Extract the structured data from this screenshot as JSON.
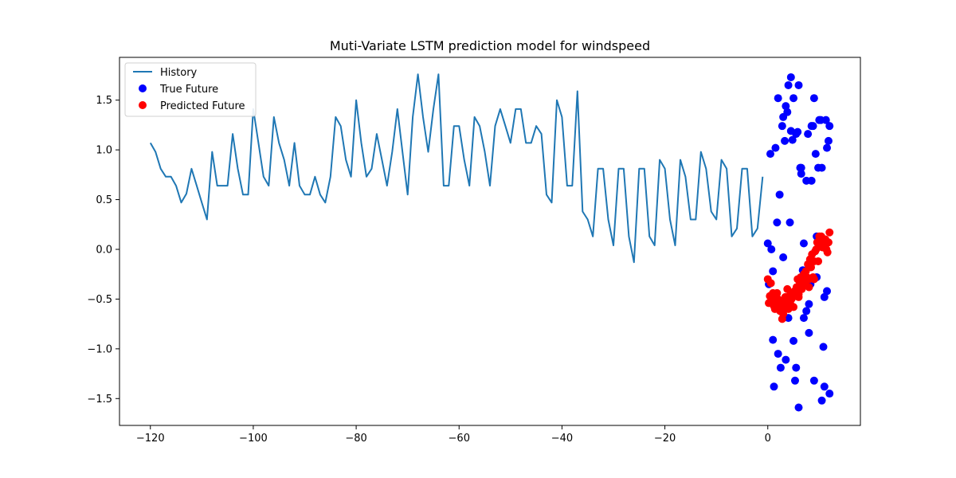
{
  "chart_data": {
    "type": "scatter",
    "title": "Muti-Variate LSTM prediction model for windspeed",
    "xlabel": "",
    "ylabel": "",
    "xlim": [
      -126,
      18
    ],
    "ylim": [
      -1.77,
      1.93
    ],
    "x_ticks": [
      -120,
      -100,
      -80,
      -60,
      -40,
      -20,
      0
    ],
    "x_tick_labels": [
      "−120",
      "−100",
      "−80",
      "−60",
      "−40",
      "−20",
      "0"
    ],
    "y_ticks": [
      -1.5,
      -1.0,
      -0.5,
      0.0,
      0.5,
      1.0,
      1.5
    ],
    "y_tick_labels": [
      "−1.5",
      "−1.0",
      "−0.5",
      "0.0",
      "0.5",
      "1.0",
      "1.5"
    ],
    "grid": false,
    "legend_position": "top-left",
    "series": [
      {
        "name": "History",
        "type": "line",
        "color": "#1f77b4",
        "x": [
          -120,
          -119,
          -118,
          -117,
          -116,
          -115,
          -114,
          -113,
          -112,
          -111,
          -110,
          -109,
          -108,
          -107,
          -106,
          -105,
          -104,
          -103,
          -102,
          -101,
          -100,
          -99,
          -98,
          -97,
          -96,
          -95,
          -94,
          -93,
          -92,
          -91,
          -90,
          -89,
          -88,
          -87,
          -86,
          -85,
          -84,
          -83,
          -82,
          -81,
          -80,
          -79,
          -78,
          -77,
          -76,
          -75,
          -74,
          -73,
          -72,
          -71,
          -70,
          -69,
          -68,
          -67,
          -66,
          -65,
          -64,
          -63,
          -62,
          -61,
          -60,
          -59,
          -58,
          -57,
          -56,
          -55,
          -54,
          -53,
          -52,
          -51,
          -50,
          -49,
          -48,
          -47,
          -46,
          -45,
          -44,
          -43,
          -42,
          -41,
          -40,
          -39,
          -38,
          -37,
          -36,
          -35,
          -34,
          -33,
          -32,
          -31,
          -30,
          -29,
          -28,
          -27,
          -26,
          -25,
          -24,
          -23,
          -22,
          -21,
          -20,
          -19,
          -18,
          -17,
          -16,
          -15,
          -14,
          -13,
          -12,
          -11,
          -10,
          -9,
          -8,
          -7,
          -6,
          -5,
          -4,
          -3,
          -2,
          -1
        ],
        "y": [
          1.07,
          0.98,
          0.81,
          0.73,
          0.73,
          0.64,
          0.47,
          0.56,
          0.81,
          0.64,
          0.47,
          0.3,
          0.98,
          0.64,
          0.64,
          0.64,
          1.16,
          0.81,
          0.55,
          0.55,
          1.41,
          1.07,
          0.73,
          0.64,
          1.33,
          1.07,
          0.9,
          0.64,
          1.07,
          0.64,
          0.55,
          0.55,
          0.73,
          0.55,
          0.47,
          0.73,
          1.33,
          1.24,
          0.9,
          0.73,
          1.5,
          1.07,
          0.73,
          0.81,
          1.16,
          0.9,
          0.64,
          0.98,
          1.41,
          0.98,
          0.55,
          1.33,
          1.76,
          1.33,
          0.98,
          1.41,
          1.76,
          0.64,
          0.64,
          1.24,
          1.24,
          0.9,
          0.64,
          1.33,
          1.24,
          0.98,
          0.64,
          1.24,
          1.41,
          1.24,
          1.07,
          1.41,
          1.41,
          1.07,
          1.07,
          1.24,
          1.16,
          0.55,
          0.47,
          1.5,
          1.33,
          0.64,
          0.64,
          1.59,
          0.38,
          0.3,
          0.13,
          0.81,
          0.81,
          0.3,
          0.04,
          0.81,
          0.81,
          0.13,
          -0.13,
          0.81,
          0.81,
          0.13,
          0.04,
          0.9,
          0.81,
          0.3,
          0.04,
          0.9,
          0.73,
          0.3,
          0.3,
          0.98,
          0.81,
          0.38,
          0.3,
          0.9,
          0.81,
          0.13,
          0.21,
          0.81,
          0.81,
          0.13,
          0.21,
          0.73
        ]
      },
      {
        "name": "True Future",
        "type": "scatter",
        "color": "#0000ff",
        "x": [
          0.0,
          0.5,
          1.0,
          1.0,
          1.5,
          2.0,
          2.0,
          2.5,
          3.0,
          3.0,
          3.5,
          3.5,
          4.0,
          4.0,
          4.5,
          4.5,
          5.0,
          5.0,
          5.5,
          5.5,
          6.0,
          6.0,
          6.5,
          6.5,
          7.0,
          7.0,
          7.5,
          7.5,
          8.0,
          8.0,
          8.5,
          8.5,
          9.0,
          9.0,
          9.5,
          9.5,
          10.0,
          10.0,
          10.5,
          10.5,
          11.0,
          11.0,
          11.5,
          11.5,
          12.0,
          0.2,
          0.7,
          1.2,
          1.8,
          2.3,
          2.8,
          3.3,
          3.8,
          4.3,
          4.8,
          5.3,
          5.8,
          6.3,
          6.8,
          7.3,
          7.8,
          8.3,
          8.8,
          9.3,
          9.8,
          10.3,
          10.8,
          11.3,
          11.8,
          12.0
        ],
        "y": [
          0.06,
          0.96,
          -0.22,
          -0.91,
          1.02,
          -1.05,
          1.52,
          -1.19,
          -0.08,
          1.33,
          1.44,
          -1.11,
          1.65,
          -0.69,
          1.73,
          1.19,
          -0.92,
          1.52,
          -1.19,
          1.16,
          1.65,
          -1.59,
          0.82,
          0.76,
          -0.69,
          0.06,
          -0.62,
          0.69,
          -0.55,
          -0.84,
          1.24,
          0.69,
          1.52,
          -1.32,
          -0.28,
          0.13,
          0.06,
          1.3,
          -1.52,
          0.82,
          -0.48,
          -1.38,
          -0.42,
          1.02,
          -1.45,
          -0.35,
          0.0,
          -1.38,
          0.27,
          0.55,
          1.24,
          1.09,
          1.38,
          0.27,
          1.1,
          -1.32,
          1.18,
          0.82,
          -0.21,
          -0.31,
          1.16,
          -0.35,
          1.24,
          0.96,
          0.82,
          1.3,
          -0.98,
          1.3,
          1.09,
          1.24
        ],
        "extra_y_point": 0.55
      },
      {
        "name": "Predicted Future",
        "type": "scatter",
        "color": "#ff0000",
        "x": [
          0.0,
          0.2,
          0.4,
          0.6,
          0.8,
          1.0,
          1.2,
          1.4,
          1.6,
          1.8,
          2.0,
          2.2,
          2.4,
          2.6,
          2.8,
          3.0,
          3.2,
          3.4,
          3.6,
          3.8,
          4.0,
          4.2,
          4.4,
          4.6,
          4.8,
          5.0,
          5.2,
          5.4,
          5.6,
          5.8,
          6.0,
          6.2,
          6.4,
          6.6,
          6.8,
          7.0,
          7.2,
          7.4,
          7.6,
          7.8,
          8.0,
          8.2,
          8.4,
          8.6,
          8.8,
          9.0,
          9.2,
          9.4,
          9.6,
          9.8,
          10.0,
          10.2,
          10.4,
          10.6,
          10.8,
          11.0,
          11.2,
          11.4,
          11.6,
          11.8,
          12.0,
          1.0,
          2.0,
          3.0,
          4.0,
          5.0,
          6.0,
          7.0,
          8.0,
          9.0,
          10.0,
          11.0
        ],
        "y": [
          -0.3,
          -0.54,
          -0.47,
          -0.34,
          -0.52,
          -0.55,
          -0.57,
          -0.6,
          -0.5,
          -0.44,
          -0.58,
          -0.54,
          -0.62,
          -0.55,
          -0.7,
          -0.52,
          -0.6,
          -0.48,
          -0.55,
          -0.4,
          -0.52,
          -0.47,
          -0.55,
          -0.5,
          -0.45,
          -0.58,
          -0.42,
          -0.47,
          -0.38,
          -0.3,
          -0.45,
          -0.35,
          -0.28,
          -0.4,
          -0.32,
          -0.25,
          -0.35,
          -0.22,
          -0.28,
          -0.15,
          -0.3,
          -0.1,
          -0.18,
          -0.05,
          -0.28,
          -0.12,
          -0.02,
          0.0,
          0.07,
          -0.12,
          0.03,
          0.1,
          0.13,
          0.02,
          0.06,
          0.08,
          0.1,
          0.0,
          -0.03,
          0.07,
          0.17,
          -0.44,
          -0.5,
          -0.65,
          -0.6,
          -0.43,
          -0.48,
          -0.33,
          -0.38,
          -0.3,
          0.13,
          0.05
        ]
      }
    ]
  }
}
